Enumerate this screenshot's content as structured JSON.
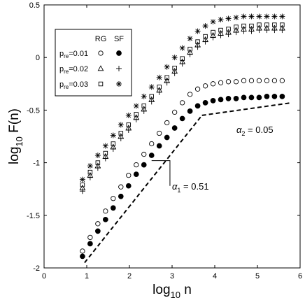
{
  "chart_data": {
    "type": "scatter",
    "xlabel": "log10 n",
    "ylabel": "log10 F(n)",
    "xlim": [
      0,
      6
    ],
    "ylim": [
      -2,
      0.5
    ],
    "x_ticks": [
      "0",
      "1",
      "2",
      "3",
      "4",
      "5",
      "6"
    ],
    "y_ticks": [
      "-2",
      "-1.5",
      "-1",
      "-0.5",
      "0",
      "0.5"
    ],
    "x_tick_values": [
      0,
      1,
      2,
      3,
      4,
      5,
      6
    ],
    "y_tick_values": [
      -2,
      -1.5,
      -1,
      -0.5,
      0,
      0.5
    ],
    "grid": false,
    "legend": {
      "placement": "top-left",
      "headers": [
        "RG",
        "SF"
      ],
      "rows": [
        {
          "label_main": "p",
          "label_sub": "re",
          "label_rest": "=0.01",
          "rg_marker": "circle-open",
          "sf_marker": "circle-filled"
        },
        {
          "label_main": "p",
          "label_sub": "re",
          "label_rest": "=0.02",
          "rg_marker": "triangle",
          "sf_marker": "plus"
        },
        {
          "label_main": "p",
          "label_sub": "re",
          "label_rest": "=0.03",
          "rg_marker": "square",
          "sf_marker": "asterisk"
        }
      ]
    },
    "x": [
      0.9,
      1.08,
      1.26,
      1.44,
      1.62,
      1.8,
      1.98,
      2.16,
      2.34,
      2.52,
      2.7,
      2.88,
      3.06,
      3.24,
      3.42,
      3.6,
      3.78,
      3.96,
      4.14,
      4.32,
      4.5,
      4.68,
      4.86,
      5.04,
      5.22,
      5.4,
      5.58
    ],
    "series": [
      {
        "marker": "circle-open",
        "values": [
          -1.84,
          -1.71,
          -1.58,
          -1.46,
          -1.34,
          -1.23,
          -1.12,
          -1.02,
          -0.92,
          -0.82,
          -0.72,
          -0.62,
          -0.52,
          -0.43,
          -0.35,
          -0.3,
          -0.27,
          -0.25,
          -0.24,
          -0.23,
          -0.23,
          -0.22,
          -0.22,
          -0.22,
          -0.22,
          -0.22,
          -0.22
        ]
      },
      {
        "marker": "circle-filled",
        "values": [
          -1.89,
          -1.77,
          -1.65,
          -1.54,
          -1.43,
          -1.32,
          -1.22,
          -1.11,
          -1.02,
          -0.93,
          -0.84,
          -0.76,
          -0.67,
          -0.58,
          -0.51,
          -0.46,
          -0.43,
          -0.41,
          -0.4,
          -0.39,
          -0.39,
          -0.38,
          -0.38,
          -0.38,
          -0.37,
          -0.37,
          -0.37
        ]
      },
      {
        "marker": "triangle",
        "values": [
          -1.24,
          -1.12,
          -1.03,
          -0.94,
          -0.85,
          -0.75,
          -0.67,
          -0.57,
          -0.49,
          -0.4,
          -0.31,
          -0.22,
          -0.13,
          -0.04,
          0.05,
          0.12,
          0.17,
          0.21,
          0.23,
          0.24,
          0.26,
          0.27,
          0.27,
          0.28,
          0.28,
          0.28,
          0.28
        ]
      },
      {
        "marker": "plus",
        "values": [
          -1.27,
          -1.14,
          -1.05,
          -0.96,
          -0.87,
          -0.77,
          -0.69,
          -0.59,
          -0.51,
          -0.42,
          -0.33,
          -0.24,
          -0.15,
          -0.06,
          0.03,
          0.1,
          0.15,
          0.19,
          0.21,
          0.22,
          0.24,
          0.25,
          0.25,
          0.26,
          0.26,
          0.26,
          0.26
        ]
      },
      {
        "marker": "square",
        "values": [
          -1.21,
          -1.09,
          -1.0,
          -0.91,
          -0.82,
          -0.72,
          -0.64,
          -0.54,
          -0.46,
          -0.37,
          -0.28,
          -0.19,
          -0.1,
          -0.01,
          0.08,
          0.15,
          0.2,
          0.24,
          0.26,
          0.27,
          0.29,
          0.3,
          0.3,
          0.31,
          0.31,
          0.31,
          0.31
        ]
      },
      {
        "marker": "asterisk",
        "values": [
          -1.16,
          -1.03,
          -0.93,
          -0.84,
          -0.74,
          -0.64,
          -0.55,
          -0.46,
          -0.37,
          -0.28,
          -0.19,
          -0.09,
          0.0,
          0.09,
          0.18,
          0.25,
          0.3,
          0.34,
          0.36,
          0.37,
          0.38,
          0.39,
          0.39,
          0.39,
          0.39,
          0.39,
          0.39
        ]
      }
    ],
    "fit_lines": [
      {
        "style": "dashed",
        "points": [
          [
            0.95,
            -1.95
          ],
          [
            3.7,
            -0.55
          ]
        ]
      },
      {
        "style": "dashed",
        "points": [
          [
            3.7,
            -0.55
          ],
          [
            5.8,
            -0.43
          ]
        ]
      }
    ],
    "annotations": [
      {
        "text": "α1 = 0.51",
        "symbol": "α",
        "sub": "1",
        "rest": " = 0.51"
      },
      {
        "text": "α2 = 0.05",
        "symbol": "α",
        "sub": "2",
        "rest": " = 0.05"
      }
    ]
  }
}
